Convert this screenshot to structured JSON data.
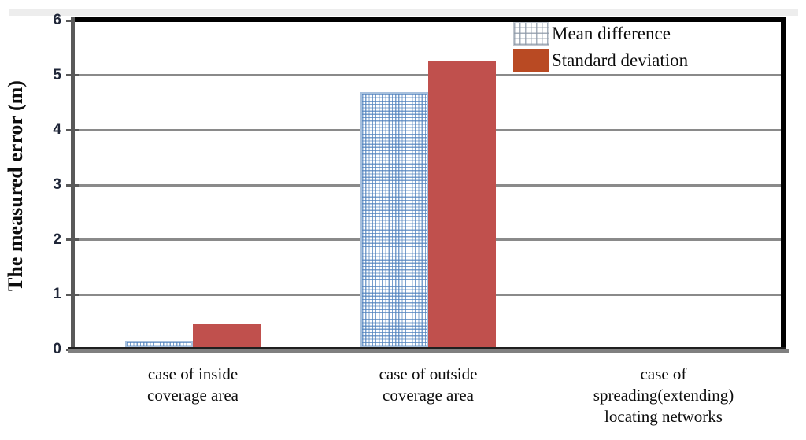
{
  "chart_data": {
    "type": "bar",
    "title": "",
    "ylabel": "The measured error (m)",
    "xlabel": "",
    "ylim": [
      0,
      6
    ],
    "yticks": [
      0,
      1,
      2,
      3,
      4,
      5,
      6
    ],
    "grid": true,
    "legend_position": "top-right-inside",
    "categories": [
      {
        "lines": [
          "case of inside",
          "coverage area"
        ]
      },
      {
        "lines": [
          "case of outside",
          "coverage area"
        ]
      },
      {
        "lines": [
          "case of",
          "spreading(extending)",
          "locating networks"
        ]
      }
    ],
    "series": [
      {
        "name": "Mean difference",
        "values": [
          0.13,
          4.66,
          0
        ],
        "fill": "pattern-grid",
        "pattern_line_color": "#4f81bd",
        "border_color": "#a7c0dd"
      },
      {
        "name": "Standard deviation",
        "values": [
          0.43,
          5.24,
          0
        ],
        "fill": "solid",
        "color": "#c0504d"
      }
    ]
  },
  "legend": {
    "items": [
      {
        "label": "Mean difference",
        "swatch": "grid-pattern",
        "swatch_line_color": "#8d99a8",
        "swatch_bg": "#ffffff",
        "swatch_border": "#c0c6ce"
      },
      {
        "label": "Standard deviation",
        "swatch": "solid",
        "swatch_color": "#b94a23"
      }
    ]
  },
  "colors": {
    "background": "#ffffff",
    "top_strip": "#ededed",
    "gridline": "#8a8a8a",
    "frame": "#000000",
    "axis_gray": "#595959",
    "axis_baseline_dark": "#1f1f1f",
    "axis_baseline_gray": "#808080",
    "tick_label": "#1f2638"
  }
}
